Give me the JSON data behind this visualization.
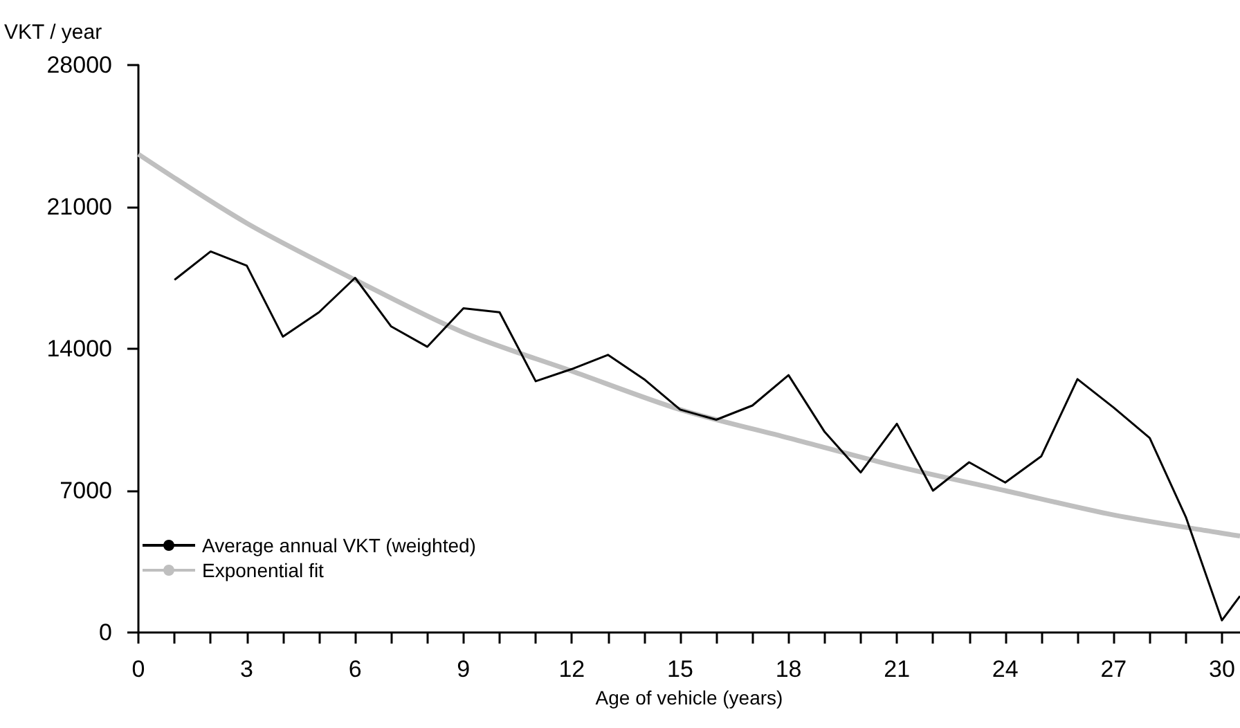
{
  "chart_data": {
    "type": "line",
    "xlabel": "Age of vehicle (years)",
    "ylabel": "VKT / year",
    "xlim": [
      0,
      30.5
    ],
    "xticks": [
      0,
      {
        "value": 1,
        "label": null
      },
      {
        "value": 2,
        "label": null
      },
      3,
      {
        "value": 4,
        "label": null
      },
      {
        "value": 5,
        "label": null
      },
      6,
      {
        "value": 7,
        "label": null
      },
      {
        "value": 8,
        "label": null
      },
      9,
      {
        "value": 10,
        "label": null
      },
      {
        "value": 11,
        "label": null
      },
      12,
      {
        "value": 13,
        "label": null
      },
      {
        "value": 14,
        "label": null
      },
      15,
      {
        "value": 16,
        "label": null
      },
      {
        "value": 17,
        "label": null
      },
      18,
      {
        "value": 19,
        "label": null
      },
      {
        "value": 20,
        "label": null
      },
      21,
      {
        "value": 22,
        "label": null
      },
      {
        "value": 23,
        "label": null
      },
      24,
      {
        "value": 25,
        "label": null
      },
      {
        "value": 26,
        "label": null
      },
      27,
      {
        "value": 28,
        "label": null
      },
      {
        "value": 29,
        "label": null
      },
      30
    ],
    "ylim": [
      0,
      28000
    ],
    "yticks": [
      0,
      7000,
      14000,
      21000,
      28000
    ],
    "grid": false,
    "legend": "bottom left",
    "marker": "none",
    "line_style": "solid",
    "series": [
      {
        "name": "Average annual VKT (weighted)",
        "color": "#000000",
        "x": [
          1,
          2,
          3,
          4,
          5,
          6,
          7,
          8,
          9,
          10,
          11,
          12,
          13,
          14,
          15,
          16,
          17,
          18,
          19,
          20,
          21,
          22,
          23,
          24,
          25,
          26,
          27,
          28,
          29,
          30,
          30.5
        ],
        "values": [
          17400,
          18800,
          18100,
          14600,
          15800,
          17500,
          15100,
          14100,
          16000,
          15800,
          12400,
          13000,
          13700,
          12500,
          11000,
          10500,
          11200,
          12700,
          9900,
          7900,
          10300,
          7000,
          8400,
          7400,
          8700,
          12500,
          11100,
          9600,
          5700,
          600,
          1800
        ]
      },
      {
        "name": "Exponential fit",
        "color": "#bfbfbf",
        "x": [
          0,
          3,
          6,
          9,
          12,
          15,
          18,
          21,
          24,
          27,
          30,
          30.5
        ],
        "values": [
          23600,
          20200,
          17400,
          14800,
          12900,
          11000,
          9600,
          8200,
          7000,
          5800,
          4900,
          4760
        ]
      }
    ]
  }
}
